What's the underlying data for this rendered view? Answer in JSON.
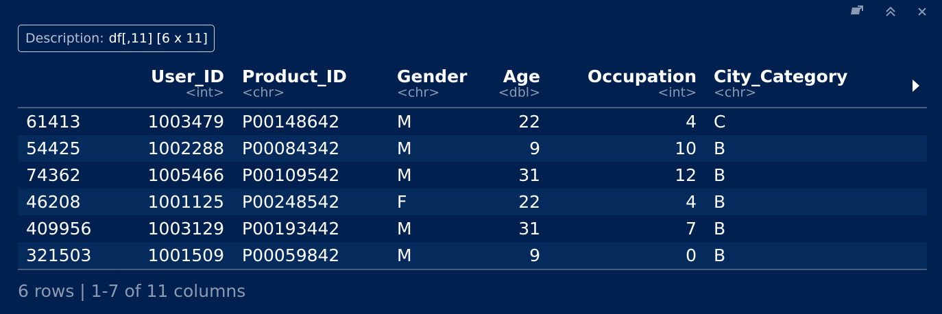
{
  "toolbar": {
    "icons": [
      "popout-icon",
      "collapse-icon",
      "close-icon"
    ]
  },
  "description": {
    "label": "Description:",
    "value": "df[,11] [6 x 11]"
  },
  "table": {
    "columns": [
      {
        "name": "",
        "type": ""
      },
      {
        "name": "User_ID",
        "type": "<int>"
      },
      {
        "name": "Product_ID",
        "type": "<chr>"
      },
      {
        "name": "Gender",
        "type": "<chr>"
      },
      {
        "name": "Age",
        "type": "<dbl>"
      },
      {
        "name": "Occupation",
        "type": "<int>"
      },
      {
        "name": "City_Category",
        "type": "<chr>"
      }
    ],
    "rows": [
      [
        "61413",
        "1003479",
        "P00148642",
        "M",
        "22",
        "4",
        "C"
      ],
      [
        "54425",
        "1002288",
        "P00084342",
        "M",
        "9",
        "10",
        "B"
      ],
      [
        "74362",
        "1005466",
        "P00109542",
        "M",
        "31",
        "12",
        "B"
      ],
      [
        "46208",
        "1001125",
        "P00248542",
        "F",
        "22",
        "4",
        "B"
      ],
      [
        "409956",
        "1003129",
        "P00193442",
        "M",
        "31",
        "7",
        "B"
      ],
      [
        "321503",
        "1001509",
        "P00059842",
        "M",
        "9",
        "0",
        "B"
      ]
    ]
  },
  "footer": {
    "text": "6 rows | 1-7 of 11 columns"
  }
}
